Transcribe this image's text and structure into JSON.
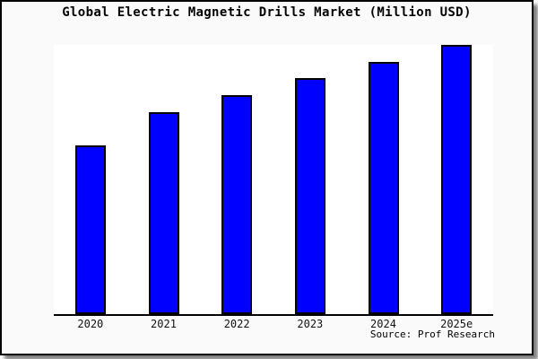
{
  "chart_data": {
    "type": "bar",
    "title": "Global Electric Magnetic Drills Market (Million USD)",
    "categories": [
      "2020",
      "2021",
      "2022",
      "2023",
      "2024",
      "2025e"
    ],
    "values": [
      62.7,
      75.0,
      81.3,
      87.7,
      93.7,
      100.0
    ],
    "value_scale": "relative index (2025e = 100); no y-axis tick labels are shown in the image",
    "xlabel": "",
    "ylabel": "",
    "ylim": [
      0,
      100
    ],
    "grid": false,
    "legend": null,
    "bar_color": "#0000ff",
    "bar_border_color": "#000000"
  },
  "source": {
    "label": "Source: Prof Research"
  },
  "colors": {
    "figure_background": "#fafafa",
    "plot_background": "#ffffff",
    "frame_border": "#000000",
    "axis": "#000000",
    "bar_fill": "#0000ff",
    "text": "#000000",
    "shadow": "#808080"
  }
}
